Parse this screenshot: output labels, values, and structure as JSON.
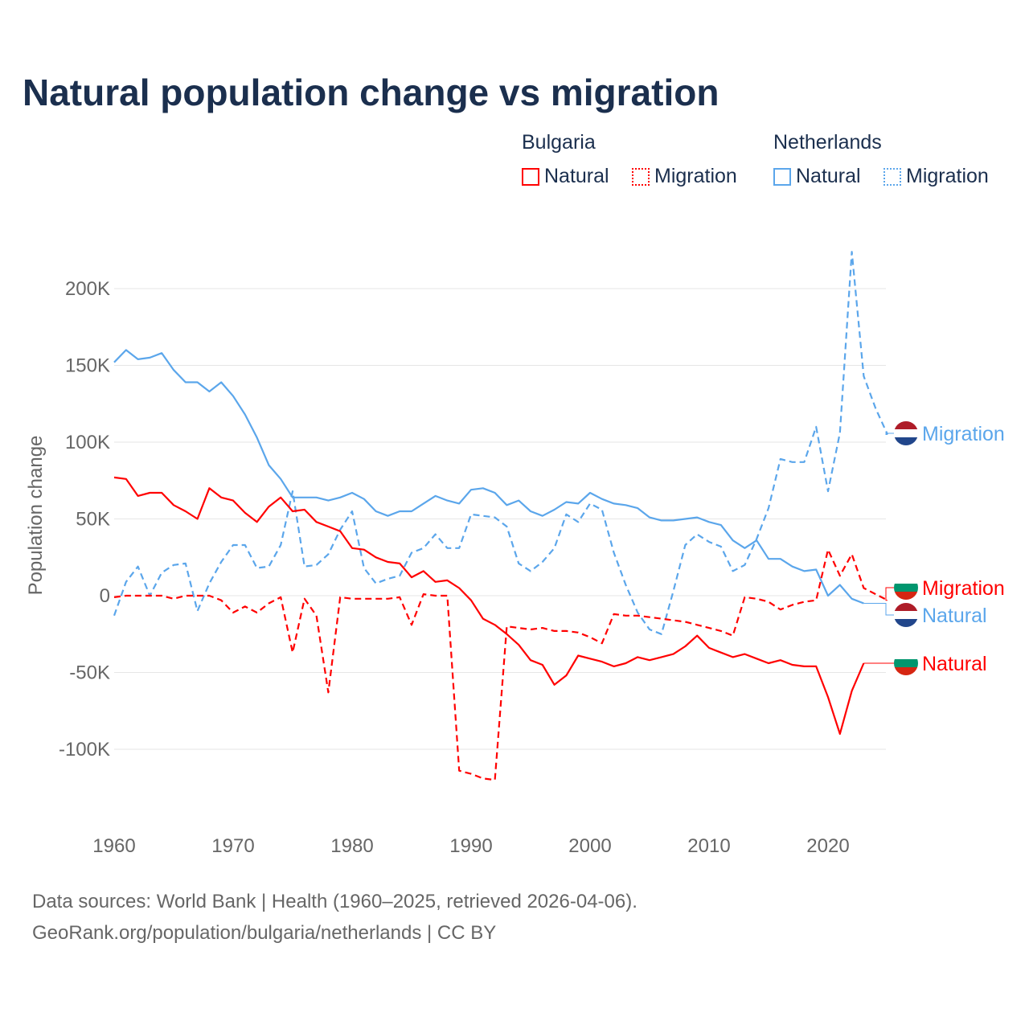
{
  "title": "Natural population change vs migration",
  "legend": {
    "groups": [
      {
        "name": "Bulgaria",
        "color": "#ff0000",
        "items": [
          "Natural",
          "Migration"
        ]
      },
      {
        "name": "Netherlands",
        "color": "#5ba6eb",
        "items": [
          "Natural",
          "Migration"
        ]
      }
    ]
  },
  "footer": {
    "line1": "Data sources: World Bank | Health (1960–2025, retrieved 2026-04-06).",
    "line2": "GeoRank.org/population/bulgaria/netherlands | CC BY"
  },
  "chart_data": {
    "type": "line",
    "title": "Natural population change vs migration",
    "xlabel": "",
    "ylabel": "Population change",
    "xlim": [
      1960,
      2025
    ],
    "ylim": [
      -120000,
      230000
    ],
    "x_ticks": [
      1960,
      1970,
      1980,
      1990,
      2000,
      2010,
      2020
    ],
    "x_tick_labels": [
      "1960",
      "1970",
      "1980",
      "1990",
      "2000",
      "2010",
      "2020"
    ],
    "y_ticks": [
      200000,
      150000,
      100000,
      50000,
      0,
      -50000,
      -100000
    ],
    "y_tick_labels": [
      "200K",
      "150K",
      "100K",
      "50K",
      "0",
      "-50K",
      "-100K"
    ],
    "grid": true,
    "legend_position": "top-right",
    "series": [
      {
        "name": "Netherlands Natural",
        "label": "Natural",
        "country": "Netherlands",
        "color": "#5ba6eb",
        "dash": false,
        "start_year": 1960,
        "values_k": [
          152,
          160,
          154,
          155,
          158,
          147,
          139,
          139,
          133,
          139,
          130,
          118,
          103,
          85,
          76,
          64,
          64,
          64,
          62,
          64,
          67,
          63,
          55,
          52,
          55,
          55,
          60,
          65,
          62,
          60,
          69,
          70,
          67,
          59,
          62,
          55,
          52,
          56,
          61,
          60,
          67,
          63,
          60,
          59,
          57,
          51,
          49,
          49,
          50,
          51,
          48,
          46,
          36,
          31,
          36,
          24,
          24,
          19,
          16,
          17,
          0,
          7,
          -2,
          -5
        ]
      },
      {
        "name": "Netherlands Migration",
        "label": "Migration",
        "country": "Netherlands",
        "color": "#5ba6eb",
        "dash": true,
        "start_year": 1960,
        "values_k": [
          -13,
          9,
          19,
          0,
          15,
          20,
          21,
          -10,
          8,
          22,
          33,
          33,
          18,
          19,
          33,
          68,
          19,
          20,
          27,
          43,
          55,
          18,
          8,
          11,
          13,
          28,
          31,
          40,
          31,
          31,
          53,
          52,
          51,
          45,
          21,
          16,
          22,
          31,
          53,
          48,
          60,
          56,
          28,
          7,
          -11,
          -22,
          -25,
          3,
          33,
          40,
          35,
          32,
          16,
          20,
          37,
          57,
          89,
          87,
          87,
          110,
          68,
          106,
          224,
          143,
          122,
          105
        ]
      },
      {
        "name": "Bulgaria Natural",
        "label": "Natural",
        "country": "Bulgaria",
        "color": "#ff0000",
        "dash": false,
        "start_year": 1960,
        "values_k": [
          77,
          76,
          65,
          67,
          67,
          59,
          55,
          50,
          70,
          64,
          62,
          54,
          48,
          58,
          64,
          55,
          56,
          48,
          45,
          42,
          31,
          30,
          25,
          22,
          21,
          12,
          16,
          9,
          10,
          5,
          -3,
          -15,
          -19,
          -25,
          -32,
          -42,
          -45,
          -58,
          -52,
          -39,
          -41,
          -43,
          -46,
          -44,
          -40,
          -42,
          -40,
          -38,
          -33,
          -26,
          -34,
          -37,
          -40,
          -38,
          -41,
          -44,
          -42,
          -45,
          -46,
          -46,
          -66,
          -90,
          -62,
          -44
        ]
      },
      {
        "name": "Bulgaria Migration",
        "label": "Migration",
        "country": "Bulgaria",
        "color": "#ff0000",
        "dash": true,
        "start_year": 1960,
        "values_k": [
          -1,
          0,
          0,
          0,
          0,
          -2,
          0,
          0,
          0,
          -3,
          -11,
          -7,
          -11,
          -5,
          -1,
          -37,
          -2,
          -13,
          -63,
          -1,
          -2,
          -2,
          -2,
          -2,
          -1,
          -19,
          1,
          0,
          0,
          -114,
          -116,
          -119,
          -120,
          -20,
          -21,
          -22,
          -21,
          -23,
          -23,
          -24,
          -27,
          -31,
          -12,
          -13,
          -13,
          -14,
          -15,
          -16,
          -17,
          -19,
          -21,
          -23,
          -26,
          -1,
          -2,
          -4,
          -9,
          -6,
          -4,
          -3,
          30,
          13,
          27,
          5,
          1,
          -3
        ]
      }
    ]
  }
}
